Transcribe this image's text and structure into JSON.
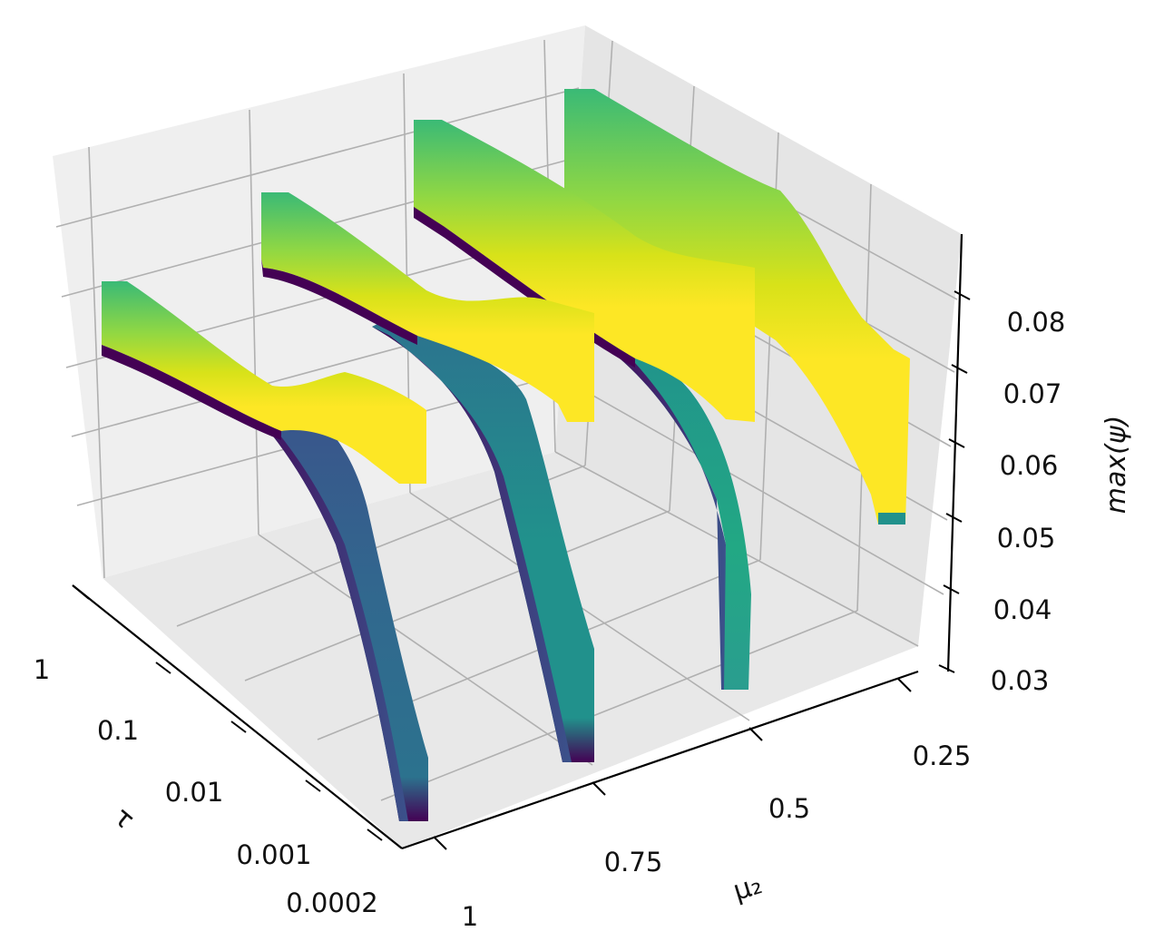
{
  "chart_data": {
    "type": "surface",
    "xlabel": "τ",
    "ylabel": "μ₂",
    "zlabel": "max(ψ)",
    "x_ticks": [
      "1",
      "0.1",
      "0.01",
      "0.001",
      "0.0002"
    ],
    "y_ticks": [
      "1",
      "0.75",
      "0.5",
      "0.25"
    ],
    "z_ticks": [
      "0.03",
      "0.04",
      "0.05",
      "0.06",
      "0.07",
      "0.08"
    ],
    "x_scale": "log",
    "zlim": [
      0.03,
      0.09
    ],
    "colormap": "viridis",
    "grid": true,
    "series": [
      {
        "mu2": 1.0,
        "tau_top": 1,
        "curve": [
          [
            0,
            0.076
          ],
          [
            0.35,
            0.076
          ],
          [
            0.48,
            0.071
          ],
          [
            0.6,
            0.071
          ],
          [
            0.72,
            0.067
          ],
          [
            1,
            0.063
          ]
        ]
      },
      {
        "mu2": 0.75,
        "tau_top": 1,
        "curve": [
          [
            0,
            0.078
          ],
          [
            0.35,
            0.077
          ],
          [
            0.48,
            0.073
          ],
          [
            0.6,
            0.073
          ],
          [
            0.72,
            0.07
          ],
          [
            1,
            0.066
          ]
        ]
      },
      {
        "mu2": 0.5,
        "tau_top": 1,
        "curve": [
          [
            0,
            0.081
          ],
          [
            0.35,
            0.08
          ],
          [
            0.48,
            0.076
          ],
          [
            0.6,
            0.076
          ],
          [
            0.72,
            0.073
          ],
          [
            1,
            0.07
          ]
        ]
      },
      {
        "mu2": 0.25,
        "tau_top": 1,
        "curve": [
          [
            0,
            0.085
          ],
          [
            0.35,
            0.083
          ],
          [
            0.48,
            0.078
          ],
          [
            0.6,
            0.073
          ],
          [
            0.78,
            0.062
          ],
          [
            1,
            0.055
          ]
        ]
      }
    ]
  }
}
